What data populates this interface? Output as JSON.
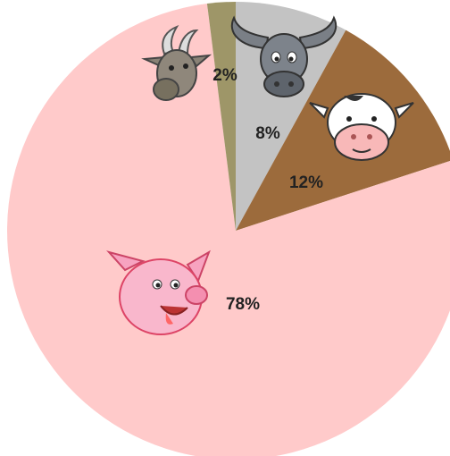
{
  "chart_data": {
    "type": "pie",
    "values": [
      8,
      12,
      78,
      2
    ],
    "value_labels": [
      "8%",
      "12%",
      "78%",
      "2%"
    ],
    "colors": [
      "#c3c3c3",
      "#9c6b3c",
      "#ffcaca",
      "#9e9668"
    ],
    "start_angle": 0,
    "direction": "clockwise"
  }
}
